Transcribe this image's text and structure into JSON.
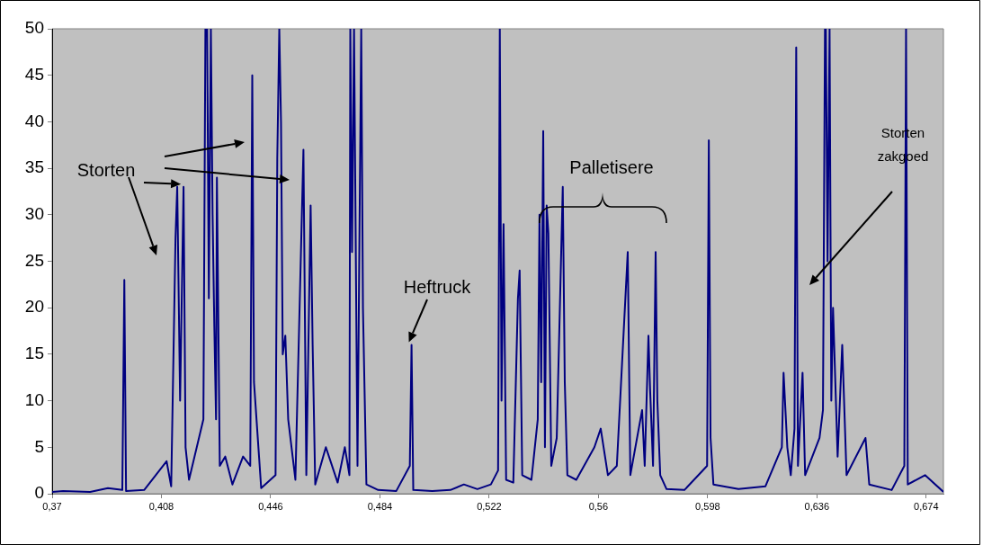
{
  "chart_data": {
    "type": "line",
    "xlim": [
      0.37,
      0.68
    ],
    "xticks": [
      {
        "value": 0.37,
        "label": "0,37"
      },
      {
        "value": 0.408,
        "label": "0,408"
      },
      {
        "value": 0.446,
        "label": "0,446"
      },
      {
        "value": 0.484,
        "label": "0,484"
      },
      {
        "value": 0.522,
        "label": "0,522"
      },
      {
        "value": 0.56,
        "label": "0,56"
      },
      {
        "value": 0.598,
        "label": "0,598"
      },
      {
        "value": 0.636,
        "label": "0,636"
      },
      {
        "value": 0.674,
        "label": "0,674"
      }
    ],
    "ylim": [
      0,
      50
    ],
    "yticks": [
      0,
      5,
      10,
      15,
      20,
      25,
      30,
      35,
      40,
      45,
      50
    ],
    "grid": false,
    "legend": false,
    "marker": "none",
    "line_style": "solid",
    "annotations": [
      {
        "text": "Storten",
        "x": 0.4157,
        "y": 33
      },
      {
        "text": "Heftruck",
        "x": 0.495,
        "y": 16
      },
      "Palletisere",
      "Storten zakgoed"
    ],
    "series": [
      {
        "color": "#000080",
        "x": [
          0.37,
          0.3738,
          0.3832,
          0.3894,
          0.3944,
          0.3951,
          0.3957,
          0.402,
          0.4098,
          0.4114,
          0.4129,
          0.4135,
          0.4145,
          0.4157,
          0.4164,
          0.4176,
          0.4226,
          0.4233,
          0.4239,
          0.4245,
          0.4252,
          0.4258,
          0.4264,
          0.427,
          0.4273,
          0.4283,
          0.4302,
          0.4327,
          0.4364,
          0.4389,
          0.4396,
          0.4402,
          0.4427,
          0.4477,
          0.4483,
          0.449,
          0.4496,
          0.4502,
          0.4511,
          0.4521,
          0.4546,
          0.4574,
          0.4584,
          0.4599,
          0.4606,
          0.4615,
          0.4652,
          0.4693,
          0.4718,
          0.4734,
          0.4737,
          0.4743,
          0.475,
          0.4762,
          0.4775,
          0.4781,
          0.4793,
          0.4834,
          0.4897,
          0.4944,
          0.495,
          0.4956,
          0.5022,
          0.5085,
          0.5132,
          0.5179,
          0.5226,
          0.5251,
          0.5257,
          0.5263,
          0.527,
          0.5279,
          0.5304,
          0.532,
          0.5326,
          0.5335,
          0.5367,
          0.5389,
          0.5395,
          0.5401,
          0.5408,
          0.5414,
          0.542,
          0.5426,
          0.5436,
          0.5455,
          0.5476,
          0.5483,
          0.5492,
          0.5523,
          0.5586,
          0.5608,
          0.5633,
          0.5664,
          0.5702,
          0.5711,
          0.5752,
          0.5761,
          0.5774,
          0.578,
          0.579,
          0.5799,
          0.5805,
          0.5815,
          0.5837,
          0.5899,
          0.5978,
          0.5984,
          0.599,
          0.6,
          0.6087,
          0.6181,
          0.6238,
          0.6244,
          0.6257,
          0.6269,
          0.6282,
          0.6288,
          0.6294,
          0.631,
          0.6319,
          0.6369,
          0.6381,
          0.6388,
          0.6391,
          0.6397,
          0.6404,
          0.641,
          0.6416,
          0.6432,
          0.6448,
          0.6463,
          0.6529,
          0.6542,
          0.662,
          0.6664,
          0.667,
          0.6676,
          0.6736,
          0.68
        ],
        "values": [
          0.2,
          0.3,
          0.2,
          0.6,
          0.4,
          23,
          0.3,
          0.4,
          3.5,
          0.8,
          27.5,
          33,
          10,
          33,
          5,
          1.5,
          8,
          50,
          50,
          21,
          50,
          30,
          18,
          8,
          34,
          3,
          4,
          1,
          4,
          3,
          45,
          12,
          0.6,
          2,
          36,
          50,
          40,
          15,
          17,
          8,
          1.5,
          37,
          2,
          31,
          16,
          1,
          5,
          1.2,
          5,
          2,
          50,
          26,
          50,
          3,
          50,
          20,
          1,
          0.4,
          0.3,
          3,
          16,
          0.4,
          0.3,
          0.4,
          1,
          0.5,
          1,
          2.5,
          50,
          10,
          29,
          1.5,
          1.2,
          21,
          24,
          2,
          1.5,
          8,
          30,
          12,
          39,
          5,
          31,
          28,
          3,
          6,
          33,
          12,
          2,
          1.5,
          5,
          7,
          2,
          3,
          26,
          2,
          9,
          3,
          17,
          11,
          3,
          26,
          10,
          2,
          0.5,
          0.4,
          3,
          38,
          6,
          1,
          0.5,
          0.8,
          5,
          13,
          5,
          2,
          7,
          48,
          3,
          13,
          2,
          6,
          9,
          50,
          50,
          25,
          50,
          10,
          20,
          4,
          16,
          2,
          6,
          1,
          0.4,
          3,
          50,
          1,
          2,
          0.2
        ]
      }
    ]
  }
}
